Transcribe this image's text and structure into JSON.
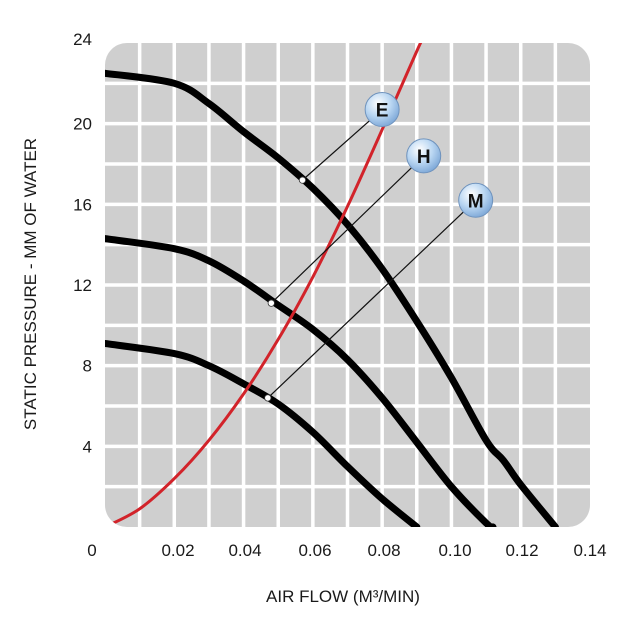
{
  "chart_data": {
    "type": "line",
    "title": "",
    "xlabel": "AIR FLOW (M³/MIN)",
    "ylabel": "STATIC PRESSURE - MM OF WATER",
    "xlim": [
      0,
      0.14
    ],
    "ylim": [
      0,
      24
    ],
    "x_tick_labels": [
      "0",
      "0.02",
      "0.04",
      "0.06",
      "0.08",
      "0.10",
      "0.12",
      "0.14"
    ],
    "y_tick_labels": [
      "4",
      "8",
      "12",
      "16",
      "20",
      "24"
    ],
    "grid": true,
    "colors": {
      "fan_curves": "#000000",
      "system_curve": "#d2232a",
      "plot_bg": "#cfcfcf",
      "badge": "#9cc3ea"
    },
    "series": [
      {
        "name": "E",
        "x": [
          0,
          0.02,
          0.03,
          0.04,
          0.05,
          0.06,
          0.07,
          0.08,
          0.09,
          0.1,
          0.11,
          0.115,
          0.12,
          0.13
        ],
        "y": [
          22.5,
          22.0,
          21.0,
          19.6,
          18.3,
          16.8,
          15.0,
          12.8,
          10.2,
          7.4,
          4.3,
          3.3,
          2.1,
          0
        ]
      },
      {
        "name": "H",
        "x": [
          0,
          0.02,
          0.03,
          0.04,
          0.05,
          0.06,
          0.07,
          0.08,
          0.09,
          0.1,
          0.11,
          0.112
        ],
        "y": [
          14.3,
          13.8,
          13.2,
          12.2,
          11.0,
          9.8,
          8.3,
          6.4,
          4.2,
          2.0,
          0.2,
          0
        ]
      },
      {
        "name": "M",
        "x": [
          0,
          0.02,
          0.03,
          0.04,
          0.05,
          0.06,
          0.07,
          0.08,
          0.09
        ],
        "y": [
          9.1,
          8.6,
          8.0,
          7.1,
          6.1,
          4.7,
          3.0,
          1.4,
          0
        ]
      },
      {
        "name": "",
        "x": [
          0,
          0.01,
          0.02,
          0.03,
          0.04,
          0.05,
          0.06,
          0.07,
          0.08,
          0.09,
          0.092
        ],
        "y": [
          0,
          0.9,
          2.4,
          4.3,
          6.6,
          9.3,
          12.4,
          15.9,
          19.7,
          23.6,
          24.3
        ]
      }
    ],
    "annotations": [
      {
        "label": "E",
        "point": {
          "x": 0.057,
          "y": 17.2
        },
        "badge_at": {
          "x": 0.08,
          "y": 20.7
        }
      },
      {
        "label": "H",
        "point": {
          "x": 0.048,
          "y": 11.1
        },
        "badge_at": {
          "x": 0.092,
          "y": 18.4
        }
      },
      {
        "label": "M",
        "point": {
          "x": 0.047,
          "y": 6.4
        },
        "badge_at": {
          "x": 0.107,
          "y": 16.2
        }
      }
    ]
  }
}
